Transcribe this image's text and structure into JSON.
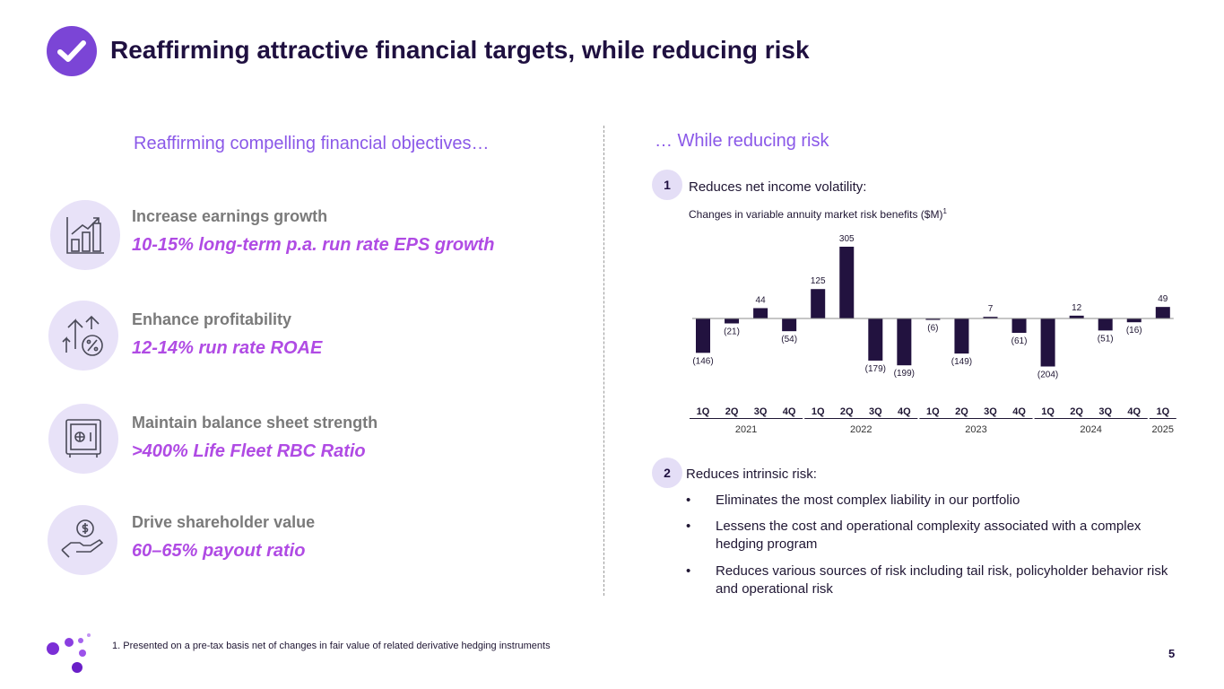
{
  "header": {
    "title": "Reaffirming attractive financial targets, while reducing risk",
    "icon": "checkmark-icon",
    "accent_color": "#7b45d6"
  },
  "left": {
    "heading": "Reaffirming compelling financial objectives…",
    "objectives": [
      {
        "icon": "bar-chart-growth-icon",
        "title": "Increase earnings growth",
        "value": "10-15% long-term p.a. run rate EPS growth"
      },
      {
        "icon": "arrows-percent-icon",
        "title": "Enhance profitability",
        "value": "12-14% run rate ROAE"
      },
      {
        "icon": "safe-icon",
        "title": "Maintain balance sheet strength",
        "value": ">400% Life Fleet RBC Ratio"
      },
      {
        "icon": "hand-coin-icon",
        "title": "Drive shareholder value",
        "value": "60–65% payout ratio"
      }
    ]
  },
  "right": {
    "heading": "… While reducing risk",
    "point1": {
      "number": "1",
      "label": "Reduces net income volatility:"
    },
    "chart_subtitle": "Changes in variable annuity market risk benefits ($M)",
    "chart_subtitle_sup": "1",
    "point2": {
      "number": "2",
      "label": "Reduces intrinsic risk:",
      "bullet_symbol": "•",
      "bullets": [
        "Eliminates the most complex liability in our portfolio",
        "Lessens the cost and operational complexity associated with  a complex hedging program",
        "Reduces various sources of risk including tail risk, policyholder behavior risk and operational risk"
      ]
    }
  },
  "chart_data": {
    "type": "bar",
    "title": "Changes in variable annuity market risk benefits ($M)",
    "xlabel": "",
    "ylabel": "",
    "bar_color": "#22123f",
    "categories": [
      "1Q",
      "2Q",
      "3Q",
      "4Q",
      "1Q",
      "2Q",
      "3Q",
      "4Q",
      "1Q",
      "2Q",
      "3Q",
      "4Q",
      "1Q",
      "2Q",
      "3Q",
      "4Q",
      "1Q"
    ],
    "values": [
      -146,
      -21,
      44,
      -54,
      125,
      305,
      -179,
      -199,
      -6,
      -149,
      7,
      -61,
      -204,
      12,
      -51,
      -16,
      49
    ],
    "value_labels": [
      "(146)",
      "(21)",
      "44",
      "(54)",
      "125",
      "305",
      "(179)",
      "(199)",
      "(6)",
      "(149)",
      "7",
      "(61)",
      "(204)",
      "12",
      "(51)",
      "(16)",
      "49"
    ],
    "year_groups": [
      {
        "label": "2021",
        "count": 4
      },
      {
        "label": "2022",
        "count": 4
      },
      {
        "label": "2023",
        "count": 4
      },
      {
        "label": "2024",
        "count": 4
      },
      {
        "label": "2025",
        "count": 1
      }
    ],
    "ylim": [
      -204,
      305
    ],
    "grid": false,
    "legend": "none"
  },
  "footer": {
    "footnote": "1.   Presented on a pre-tax basis net of changes in fair value of related derivative hedging instruments",
    "page_number": "5",
    "logo": "dots-logo-icon"
  }
}
